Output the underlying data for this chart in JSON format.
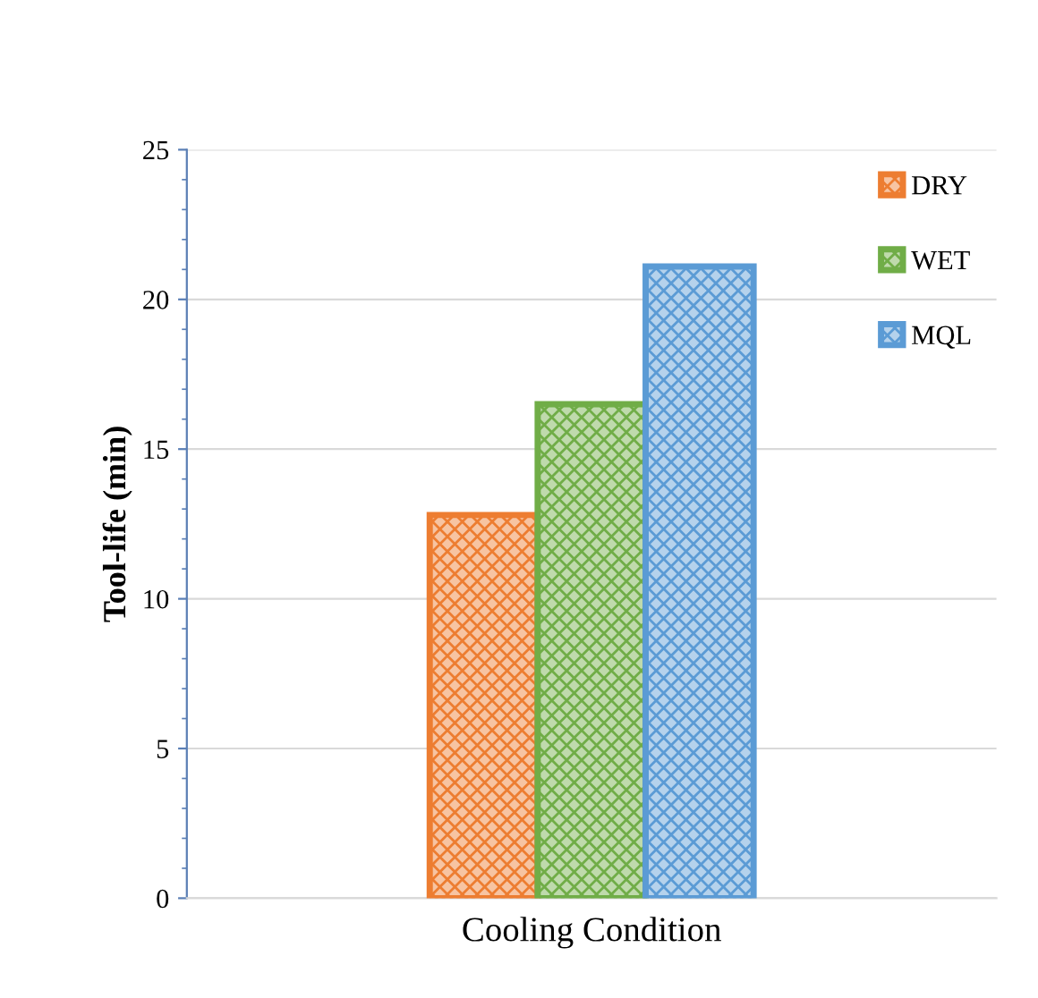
{
  "chart_data": {
    "type": "bar",
    "ylabel": "Tool-life (min)",
    "xlabel": "Cooling Condition",
    "categories": [
      null
    ],
    "series": [
      {
        "name": "DRY",
        "color": "#ed7d31",
        "values": [
          12.8
        ]
      },
      {
        "name": "WET",
        "color": "#70ad47",
        "values": [
          16.5
        ]
      },
      {
        "name": "MQL",
        "color": "#5b9bd5",
        "values": [
          21.1
        ]
      }
    ],
    "ylim": [
      0,
      25
    ],
    "yticks": [
      0,
      5,
      10,
      15,
      20,
      25
    ],
    "grid": "y",
    "legend": "top right"
  }
}
